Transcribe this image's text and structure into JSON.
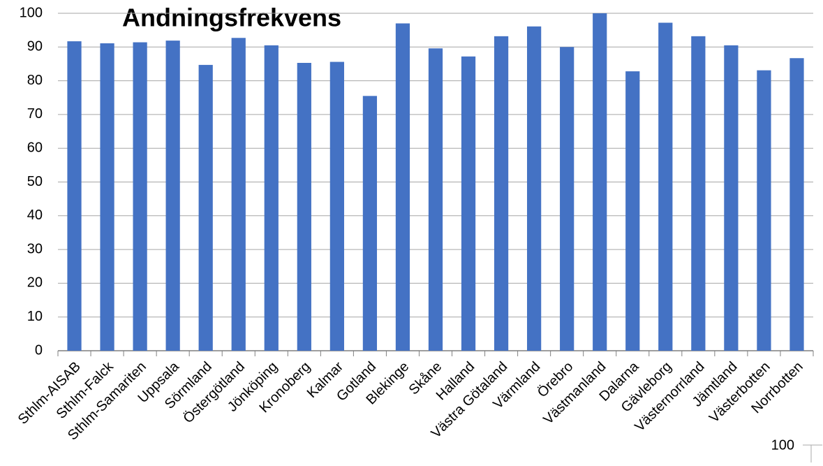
{
  "chart_data": {
    "type": "bar",
    "title": "Andningsfrekvens",
    "categories": [
      "Sthlm-AISAB",
      "Sthlm-Falck",
      "Sthlm-Samariten",
      "Uppsala",
      "Sörmland",
      "Östergötland",
      "Jönköping",
      "Kronoberg",
      "Kalmar",
      "Gotland",
      "Blekinge",
      "Skåne",
      "Halland",
      "Västra Götaland",
      "Värmland",
      "Örebro",
      "Västmanland",
      "Dalarna",
      "Gävleborg",
      "Västernorrland",
      "Jämtland",
      "Västerbotten",
      "Norrbotten"
    ],
    "values": [
      91.7,
      91.1,
      91.4,
      91.9,
      84.7,
      92.7,
      90.5,
      85.3,
      85.6,
      75.5,
      97.0,
      89.6,
      87.2,
      93.2,
      96.1,
      90.0,
      100.0,
      82.8,
      97.2,
      93.2,
      90.5,
      83.1,
      86.7
    ],
    "color": "#4472c4",
    "ylim": [
      0,
      100
    ],
    "yticks": [
      0,
      10,
      20,
      30,
      40,
      50,
      60,
      70,
      80,
      90,
      100
    ],
    "grid": true,
    "annotation": "100"
  }
}
